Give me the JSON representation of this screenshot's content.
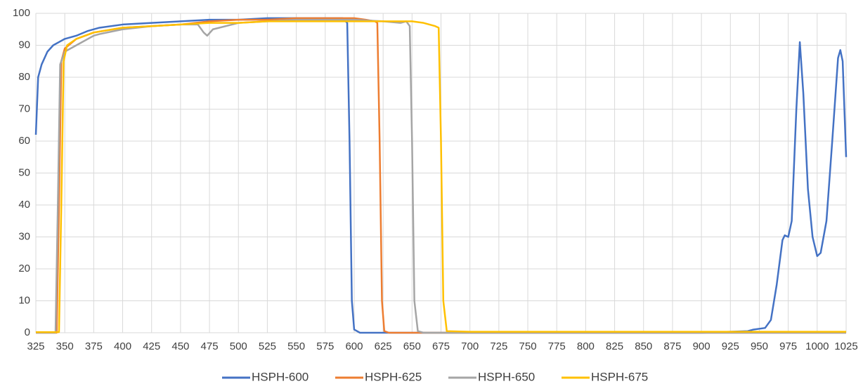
{
  "chart_data": {
    "type": "line",
    "xlim": [
      325,
      1025
    ],
    "ylim": [
      0,
      100
    ],
    "xticks": [
      325,
      350,
      375,
      400,
      425,
      450,
      475,
      500,
      525,
      550,
      575,
      600,
      625,
      650,
      675,
      700,
      725,
      750,
      775,
      800,
      825,
      850,
      875,
      900,
      925,
      950,
      975,
      1000,
      1025
    ],
    "yticks": [
      0,
      10,
      20,
      30,
      40,
      50,
      60,
      70,
      80,
      90,
      100
    ],
    "grid": true,
    "legend": "bottom",
    "series": [
      {
        "name": "HSPH-600",
        "color": "#4472c4",
        "x": [
          325,
          327,
          330,
          335,
          340,
          345,
          350,
          360,
          370,
          380,
          400,
          425,
          450,
          475,
          500,
          525,
          550,
          575,
          590,
          594,
          596,
          598,
          600,
          605,
          650,
          900,
          940,
          945,
          955,
          960,
          965,
          970,
          972,
          975,
          978,
          982,
          985,
          988,
          992,
          996,
          1000,
          1003,
          1008,
          1013,
          1018,
          1020,
          1022,
          1025
        ],
        "values": [
          62,
          80,
          84,
          88,
          90,
          91,
          92,
          93,
          94.5,
          95.5,
          96.5,
          97,
          97.5,
          98,
          98,
          98.5,
          98.5,
          98.5,
          98.5,
          97,
          60,
          10,
          1,
          0,
          0,
          0,
          0.5,
          1,
          1.5,
          4,
          15,
          29,
          30.5,
          30,
          35,
          70,
          91,
          75,
          45,
          30,
          24,
          25,
          35,
          60,
          86,
          88.5,
          85,
          55
        ]
      },
      {
        "name": "HSPH-625",
        "color": "#ed7d31",
        "x": [
          325,
          343,
          345,
          347,
          350,
          360,
          375,
          400,
          425,
          450,
          475,
          500,
          525,
          550,
          575,
          600,
          610,
          618,
          620,
          622,
          624,
          626,
          630,
          1025
        ],
        "values": [
          0,
          0,
          40,
          85,
          89,
          92,
          94,
          95.5,
          96,
          96.5,
          97.5,
          98,
          98,
          98.5,
          98.5,
          98.5,
          98,
          97.5,
          97,
          60,
          10,
          0.5,
          0,
          0
        ]
      },
      {
        "name": "HSPH-650",
        "color": "#a5a5a5",
        "x": [
          325,
          342,
          344,
          346,
          350,
          360,
          375,
          380,
          400,
          425,
          450,
          465,
          470,
          473,
          478,
          500,
          525,
          550,
          575,
          600,
          625,
          640,
          645,
          648,
          650,
          652,
          655,
          660,
          1025
        ],
        "values": [
          0,
          0,
          40,
          84,
          88,
          90,
          93,
          93.5,
          95,
          96,
          96.5,
          96.5,
          94,
          93,
          95,
          97,
          97.5,
          98,
          98,
          98,
          97.5,
          97,
          97.5,
          96,
          60,
          10,
          0.5,
          0,
          0
        ]
      },
      {
        "name": "HSPH-675",
        "color": "#ffc000",
        "x": [
          325,
          345,
          347,
          349,
          352,
          360,
          375,
          400,
          425,
          450,
          475,
          500,
          525,
          550,
          575,
          600,
          625,
          650,
          660,
          670,
          673,
          675,
          677,
          680,
          700,
          1025
        ],
        "values": [
          0.2,
          0.2,
          40,
          85,
          90,
          92,
          94,
          95.5,
          96,
          96.5,
          97,
          97,
          97.5,
          97.5,
          97.5,
          97.5,
          97.5,
          97.5,
          97,
          96,
          95.5,
          60,
          10,
          0.5,
          0.3,
          0.3
        ]
      }
    ]
  }
}
